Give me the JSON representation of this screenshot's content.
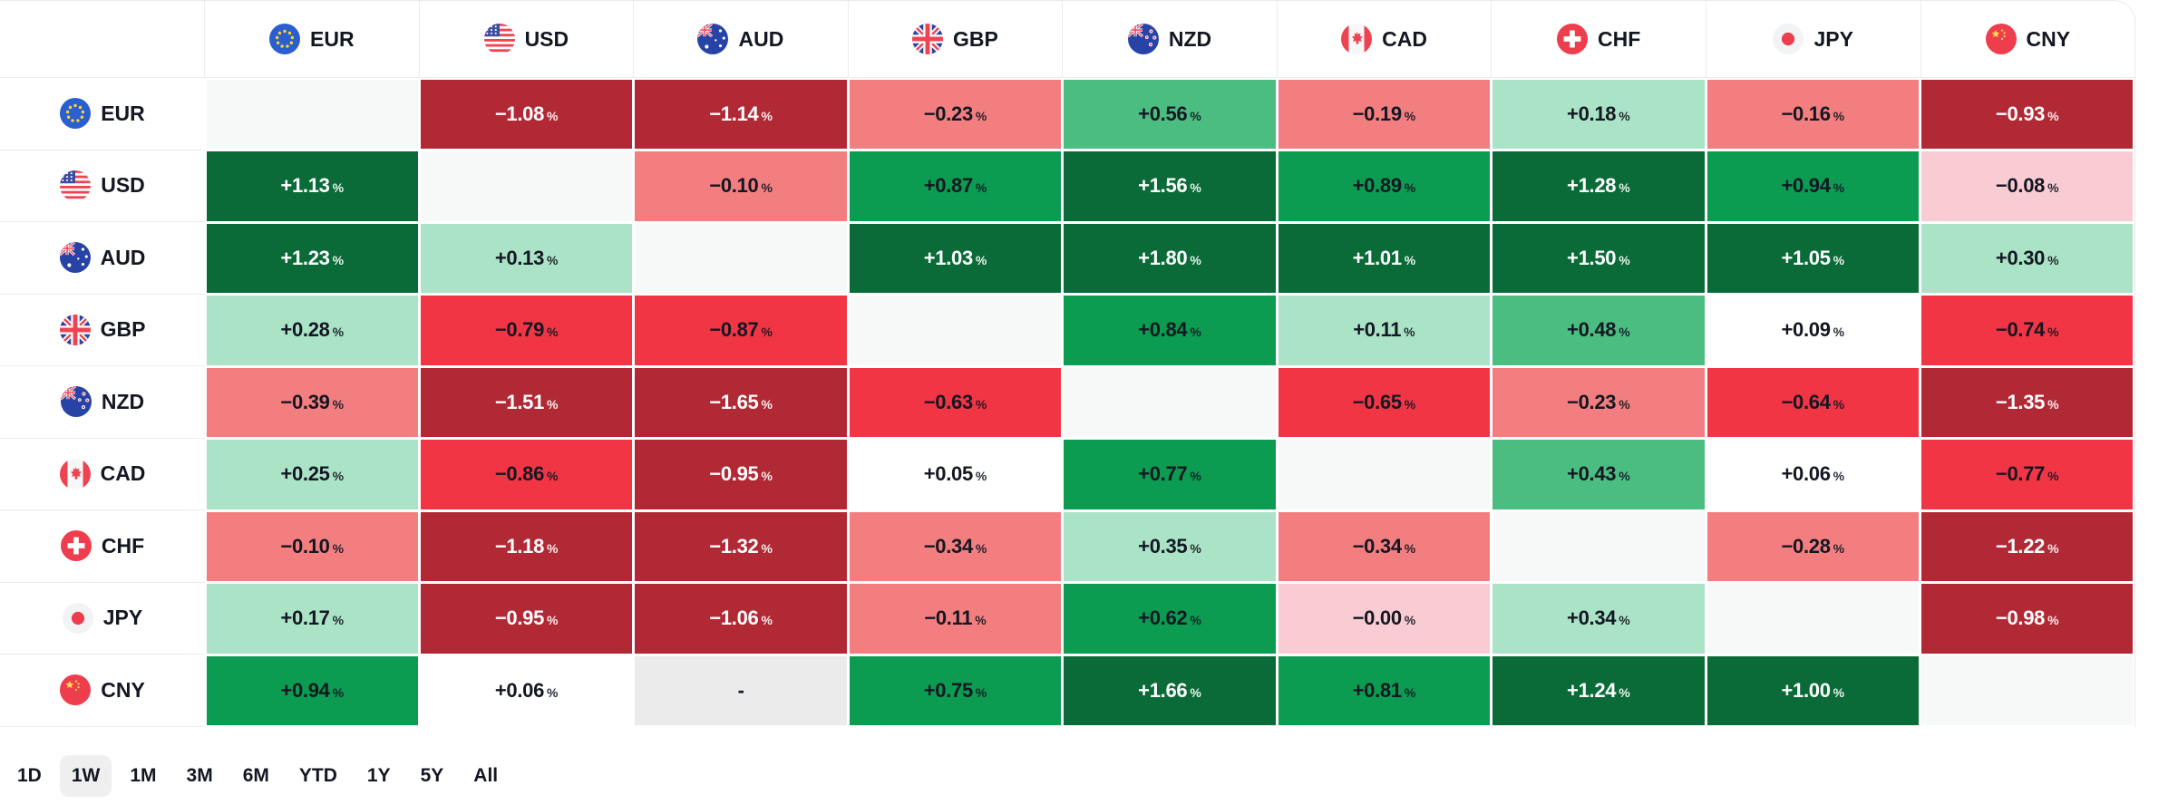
{
  "chart_data": {
    "type": "heatmap",
    "unit": "%",
    "no_data_marker": "-",
    "x_categories": [
      "EUR",
      "USD",
      "AUD",
      "GBP",
      "NZD",
      "CAD",
      "CHF",
      "JPY",
      "CNY"
    ],
    "y_categories": [
      "EUR",
      "USD",
      "AUD",
      "GBP",
      "NZD",
      "CAD",
      "CHF",
      "JPY",
      "CNY"
    ],
    "cells": [
      [
        null,
        "-1.08",
        "-1.14",
        "-0.23",
        "+0.56",
        "-0.19",
        "+0.18",
        "-0.16",
        "-0.93"
      ],
      [
        "+1.13",
        null,
        "-0.10",
        "+0.87",
        "+1.56",
        "+0.89",
        "+1.28",
        "+0.94",
        "-0.08"
      ],
      [
        "+1.23",
        "+0.13",
        null,
        "+1.03",
        "+1.80",
        "+1.01",
        "+1.50",
        "+1.05",
        "+0.30"
      ],
      [
        "+0.28",
        "-0.79",
        "-0.87",
        null,
        "+0.84",
        "+0.11",
        "+0.48",
        "+0.09",
        "-0.74"
      ],
      [
        "-0.39",
        "-1.51",
        "-1.65",
        "-0.63",
        null,
        "-0.65",
        "-0.23",
        "-0.64",
        "-1.35"
      ],
      [
        "+0.25",
        "-0.86",
        "-0.95",
        "+0.05",
        "+0.77",
        null,
        "+0.43",
        "+0.06",
        "-0.77"
      ],
      [
        "-0.10",
        "-1.18",
        "-1.32",
        "-0.34",
        "+0.35",
        "-0.34",
        null,
        "-0.28",
        "-1.22"
      ],
      [
        "+0.17",
        "-0.95",
        "-1.06",
        "-0.11",
        "+0.62",
        "-0.00",
        "+0.34",
        null,
        "-0.98"
      ],
      [
        "+0.94",
        "+0.06",
        "-",
        "+0.75",
        "+1.66",
        "+0.81",
        "+1.24",
        "+1.00",
        null
      ]
    ],
    "color_scale": {
      "green_dark": "#0a6b38",
      "green_strong": "#0b9b51",
      "green_medium": "#4cbd81",
      "green_light": "#abe3c7",
      "positive_near_zero": "#ffffff",
      "negative_near_zero": "#f9ccd3",
      "red_light": "#f37e80",
      "red_bright": "#f23544",
      "red_dark": "#b22936",
      "diagonal": "#f7f8f8",
      "no_data": "#ebebeb",
      "text_dark": "#131722",
      "text_light": "#ffffff"
    },
    "legend_position": "none",
    "grid": "white gaps between cells"
  },
  "timeframes": {
    "options": [
      "1D",
      "1W",
      "1M",
      "3M",
      "6M",
      "YTD",
      "1Y",
      "5Y",
      "All"
    ],
    "selected": "1W"
  }
}
